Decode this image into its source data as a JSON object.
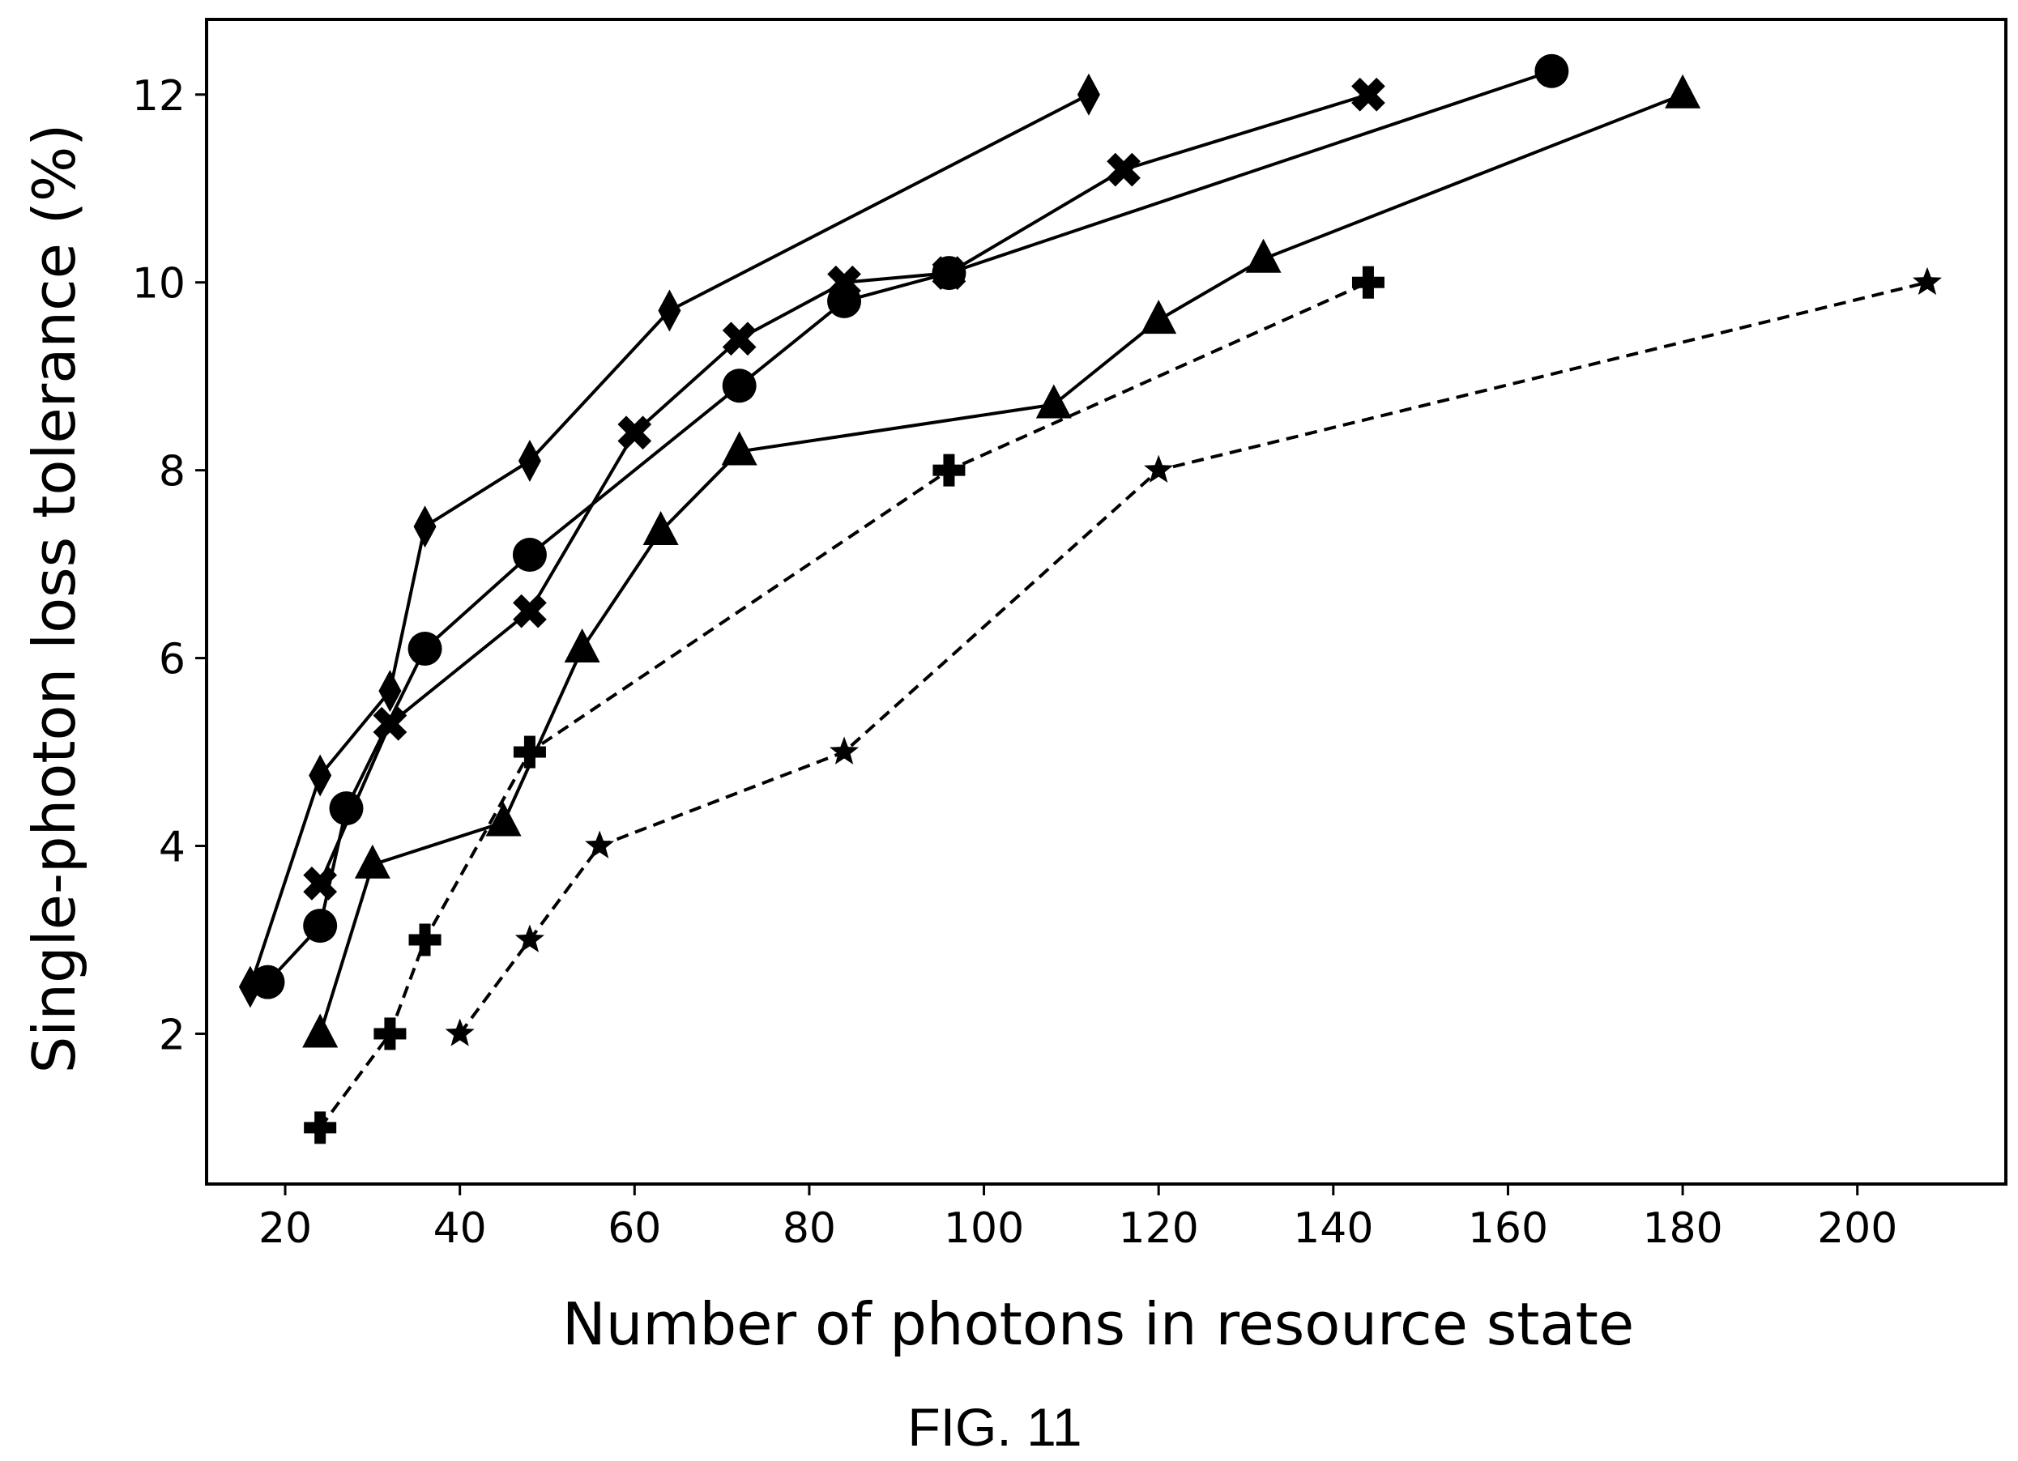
{
  "figure": {
    "caption": "FIG. 11"
  },
  "chart_data": {
    "type": "line",
    "title": "",
    "xlabel": "Number of photons in resource state",
    "ylabel": "Single-photon loss tolerance (%)",
    "xlim": [
      11,
      217
    ],
    "ylim": [
      0.4,
      12.8
    ],
    "xticks": [
      20,
      40,
      60,
      80,
      100,
      120,
      140,
      160,
      180,
      200
    ],
    "yticks": [
      2,
      4,
      6,
      8,
      10,
      12
    ],
    "grid": false,
    "legend": "none",
    "series": [
      {
        "marker": "diamond",
        "linestyle": "solid",
        "color": "#000000",
        "points": [
          [
            16,
            2.5
          ],
          [
            24,
            4.75
          ],
          [
            32,
            5.65
          ],
          [
            36,
            7.4
          ],
          [
            48,
            8.1
          ],
          [
            64,
            9.7
          ],
          [
            112,
            12.0
          ]
        ]
      },
      {
        "marker": "circle",
        "linestyle": "solid",
        "color": "#000000",
        "points": [
          [
            18,
            2.55
          ],
          [
            24,
            3.15
          ],
          [
            27,
            4.4
          ],
          [
            36,
            6.1
          ],
          [
            48,
            7.1
          ],
          [
            72,
            8.9
          ],
          [
            84,
            9.8
          ],
          [
            96,
            10.1
          ],
          [
            165,
            12.25
          ]
        ]
      },
      {
        "marker": "x",
        "linestyle": "solid",
        "color": "#000000",
        "points": [
          [
            24,
            3.6
          ],
          [
            32,
            5.3
          ],
          [
            48,
            6.5
          ],
          [
            60,
            8.4
          ],
          [
            72,
            9.4
          ],
          [
            84,
            10.0
          ],
          [
            96,
            10.1
          ],
          [
            116,
            11.2
          ],
          [
            144,
            12.0
          ]
        ]
      },
      {
        "marker": "triangle",
        "linestyle": "solid",
        "color": "#000000",
        "points": [
          [
            24,
            2.0
          ],
          [
            30,
            3.8
          ],
          [
            45,
            4.25
          ],
          [
            54,
            6.1
          ],
          [
            63,
            7.35
          ],
          [
            72,
            8.2
          ],
          [
            108,
            8.7
          ],
          [
            120,
            9.6
          ],
          [
            132,
            10.25
          ],
          [
            180,
            12.0
          ]
        ]
      },
      {
        "marker": "plus",
        "linestyle": "dashed",
        "color": "#000000",
        "points": [
          [
            24,
            1.0
          ],
          [
            32,
            2.0
          ],
          [
            36,
            3.0
          ],
          [
            48,
            5.0
          ],
          [
            96,
            8.0
          ],
          [
            144,
            10.0
          ]
        ]
      },
      {
        "marker": "star",
        "linestyle": "dashed",
        "color": "#000000",
        "points": [
          [
            40,
            2.0
          ],
          [
            48,
            3.0
          ],
          [
            56,
            4.0
          ],
          [
            84,
            5.0
          ],
          [
            120,
            8.0
          ],
          [
            208,
            10.0
          ]
        ]
      }
    ]
  }
}
